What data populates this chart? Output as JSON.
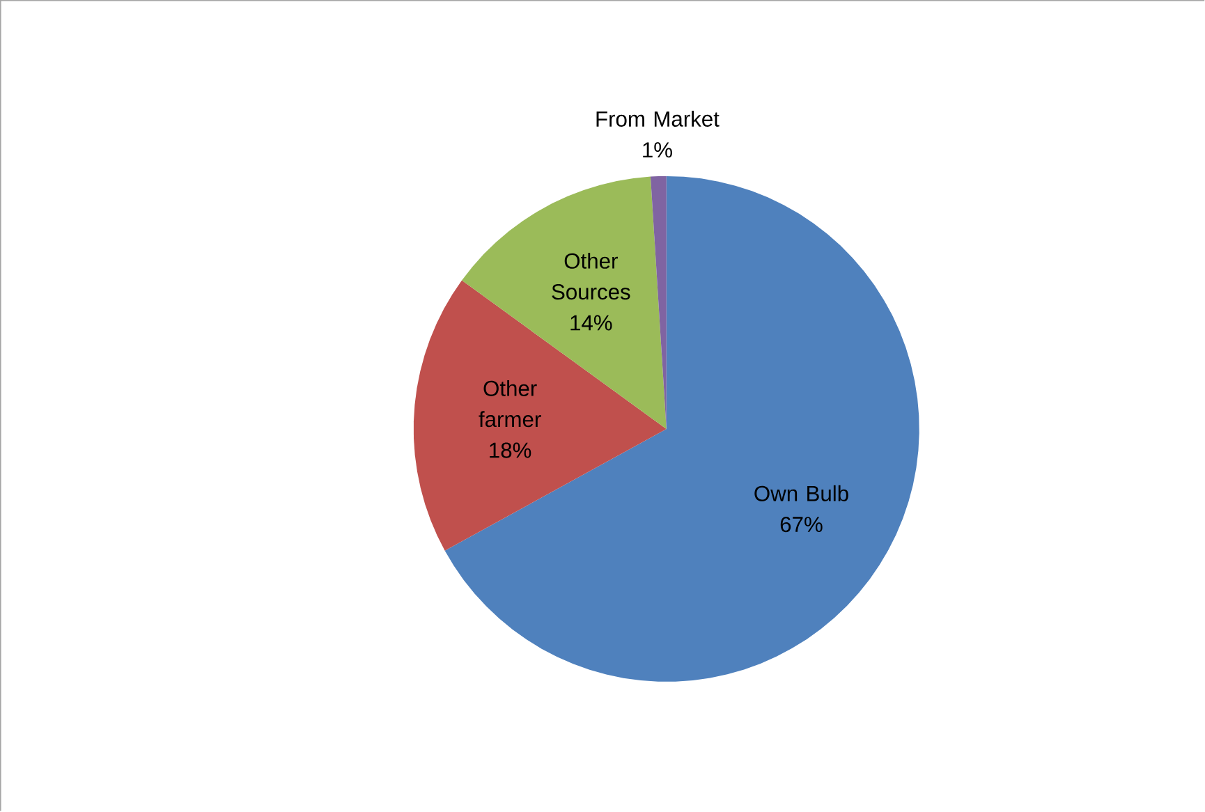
{
  "chart_data": {
    "type": "pie",
    "categories": [
      "Own Bulb",
      "Other farmer",
      "Other Sources",
      "From Market"
    ],
    "values": [
      67,
      18,
      14,
      1
    ],
    "value_labels": [
      "67%",
      "18%",
      "14%",
      "1%"
    ],
    "colors": [
      "#4f81bd",
      "#c0504d",
      "#9bbb59",
      "#8064a2"
    ]
  }
}
